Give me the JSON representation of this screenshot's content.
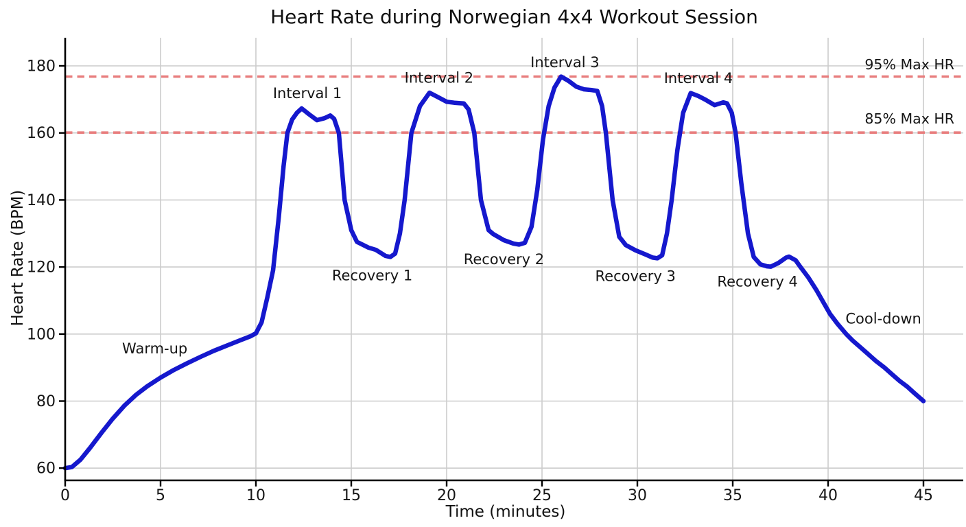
{
  "chart_data": {
    "type": "line",
    "title": "Heart Rate during Norwegian 4x4 Workout Session",
    "xlabel": "Time (minutes)",
    "ylabel": "Heart Rate (BPM)",
    "xlim": [
      0,
      47
    ],
    "ylim": [
      56,
      188.5
    ],
    "grid": true,
    "legend": "none",
    "x_ticks": [
      0,
      5,
      10,
      15,
      20,
      25,
      30,
      35,
      40,
      45
    ],
    "y_ticks": [
      60,
      80,
      100,
      120,
      140,
      160,
      180
    ],
    "colors": {
      "line": "#1518cd",
      "threshold": "#e87d7d",
      "grid": "#cccccc",
      "axis": "#000000",
      "text": "#151515"
    },
    "series": [
      {
        "name": "heart-rate",
        "color": "#1518cd",
        "points": [
          [
            0,
            60
          ],
          [
            0.35,
            60.3
          ],
          [
            0.8,
            62.5
          ],
          [
            1.3,
            66
          ],
          [
            1.9,
            70.5
          ],
          [
            2.5,
            74.8
          ],
          [
            3.1,
            78.6
          ],
          [
            3.7,
            81.8
          ],
          [
            4.3,
            84.4
          ],
          [
            5,
            87
          ],
          [
            5.7,
            89.3
          ],
          [
            6.4,
            91.3
          ],
          [
            7.1,
            93.2
          ],
          [
            7.8,
            95
          ],
          [
            8.5,
            96.6
          ],
          [
            9.2,
            98.2
          ],
          [
            9.7,
            99.3
          ],
          [
            10,
            100.2
          ],
          [
            10.3,
            103.5
          ],
          [
            10.6,
            111
          ],
          [
            10.9,
            119
          ],
          [
            11.2,
            135
          ],
          [
            11.45,
            150
          ],
          [
            11.65,
            160
          ],
          [
            11.9,
            164
          ],
          [
            12.15,
            166
          ],
          [
            12.4,
            167.3
          ],
          [
            12.8,
            165.5
          ],
          [
            13.2,
            163.8
          ],
          [
            13.6,
            164.4
          ],
          [
            13.9,
            165.2
          ],
          [
            14.1,
            164.2
          ],
          [
            14.35,
            160
          ],
          [
            14.65,
            140
          ],
          [
            15,
            131
          ],
          [
            15.3,
            127.5
          ],
          [
            15.9,
            125.8
          ],
          [
            16.3,
            125.1
          ],
          [
            16.8,
            123.3
          ],
          [
            17.05,
            123
          ],
          [
            17.3,
            124
          ],
          [
            17.55,
            130
          ],
          [
            17.8,
            140
          ],
          [
            18.15,
            160
          ],
          [
            18.6,
            168
          ],
          [
            19.1,
            172
          ],
          [
            19.6,
            170.5
          ],
          [
            20,
            169.3
          ],
          [
            20.4,
            169
          ],
          [
            20.9,
            168.8
          ],
          [
            21.15,
            167
          ],
          [
            21.45,
            160
          ],
          [
            21.8,
            140
          ],
          [
            22.2,
            131
          ],
          [
            22.45,
            129.8
          ],
          [
            23,
            128
          ],
          [
            23.5,
            127
          ],
          [
            23.8,
            126.7
          ],
          [
            24.1,
            127.2
          ],
          [
            24.45,
            132
          ],
          [
            24.75,
            143
          ],
          [
            25.05,
            158
          ],
          [
            25.35,
            168
          ],
          [
            25.65,
            173.5
          ],
          [
            26,
            176.8
          ],
          [
            26.4,
            175.5
          ],
          [
            26.8,
            173.8
          ],
          [
            27.2,
            173
          ],
          [
            27.6,
            172.8
          ],
          [
            27.9,
            172.5
          ],
          [
            28.15,
            168
          ],
          [
            28.35,
            160
          ],
          [
            28.7,
            140
          ],
          [
            29.05,
            129
          ],
          [
            29.4,
            126.5
          ],
          [
            29.9,
            125
          ],
          [
            30.4,
            123.8
          ],
          [
            30.8,
            122.8
          ],
          [
            31.05,
            122.6
          ],
          [
            31.3,
            123.5
          ],
          [
            31.55,
            130
          ],
          [
            31.8,
            140
          ],
          [
            32.1,
            155
          ],
          [
            32.4,
            166
          ],
          [
            32.8,
            171.9
          ],
          [
            33.2,
            171
          ],
          [
            33.6,
            169.8
          ],
          [
            34.05,
            168.3
          ],
          [
            34.5,
            169.1
          ],
          [
            34.7,
            168.8
          ],
          [
            34.95,
            166
          ],
          [
            35.15,
            160
          ],
          [
            35.45,
            145
          ],
          [
            35.8,
            130
          ],
          [
            36.1,
            123
          ],
          [
            36.45,
            120.8
          ],
          [
            36.8,
            120.2
          ],
          [
            37,
            120.1
          ],
          [
            37.4,
            121.2
          ],
          [
            37.8,
            122.8
          ],
          [
            37.95,
            123.1
          ],
          [
            38.3,
            122
          ],
          [
            38.55,
            120
          ],
          [
            38.95,
            117
          ],
          [
            39.4,
            113
          ],
          [
            39.8,
            109
          ],
          [
            40.1,
            106
          ],
          [
            40.5,
            103
          ],
          [
            40.95,
            100
          ],
          [
            41.3,
            98
          ],
          [
            41.7,
            96
          ],
          [
            42.1,
            94
          ],
          [
            42.5,
            92
          ],
          [
            42.95,
            90
          ],
          [
            43.35,
            88
          ],
          [
            43.75,
            86
          ],
          [
            44.15,
            84.3
          ],
          [
            44.5,
            82.5
          ],
          [
            44.8,
            81
          ],
          [
            45,
            80
          ]
        ]
      }
    ],
    "thresholds": [
      {
        "label": "95% Max HR",
        "value": 176.8,
        "label_y": 180.4
      },
      {
        "label": "85% Max HR",
        "value": 160.1,
        "label_y": 164.2
      }
    ],
    "annotations": [
      {
        "label": "Warm-up",
        "x": 4.7,
        "y": 95.7
      },
      {
        "label": "Interval 1",
        "x": 12.7,
        "y": 171.8
      },
      {
        "label": "Recovery 1",
        "x": 16.1,
        "y": 117.5
      },
      {
        "label": "Interval 2",
        "x": 19.6,
        "y": 176.4
      },
      {
        "label": "Recovery 2",
        "x": 23.0,
        "y": 122.3
      },
      {
        "label": "Interval 3",
        "x": 26.2,
        "y": 181.0
      },
      {
        "label": "Recovery 3",
        "x": 29.9,
        "y": 117.3
      },
      {
        "label": "Interval 4",
        "x": 33.2,
        "y": 176.3
      },
      {
        "label": "Recovery 4",
        "x": 36.3,
        "y": 115.6
      },
      {
        "label": "Cool-down",
        "x": 42.9,
        "y": 104.6
      }
    ]
  }
}
